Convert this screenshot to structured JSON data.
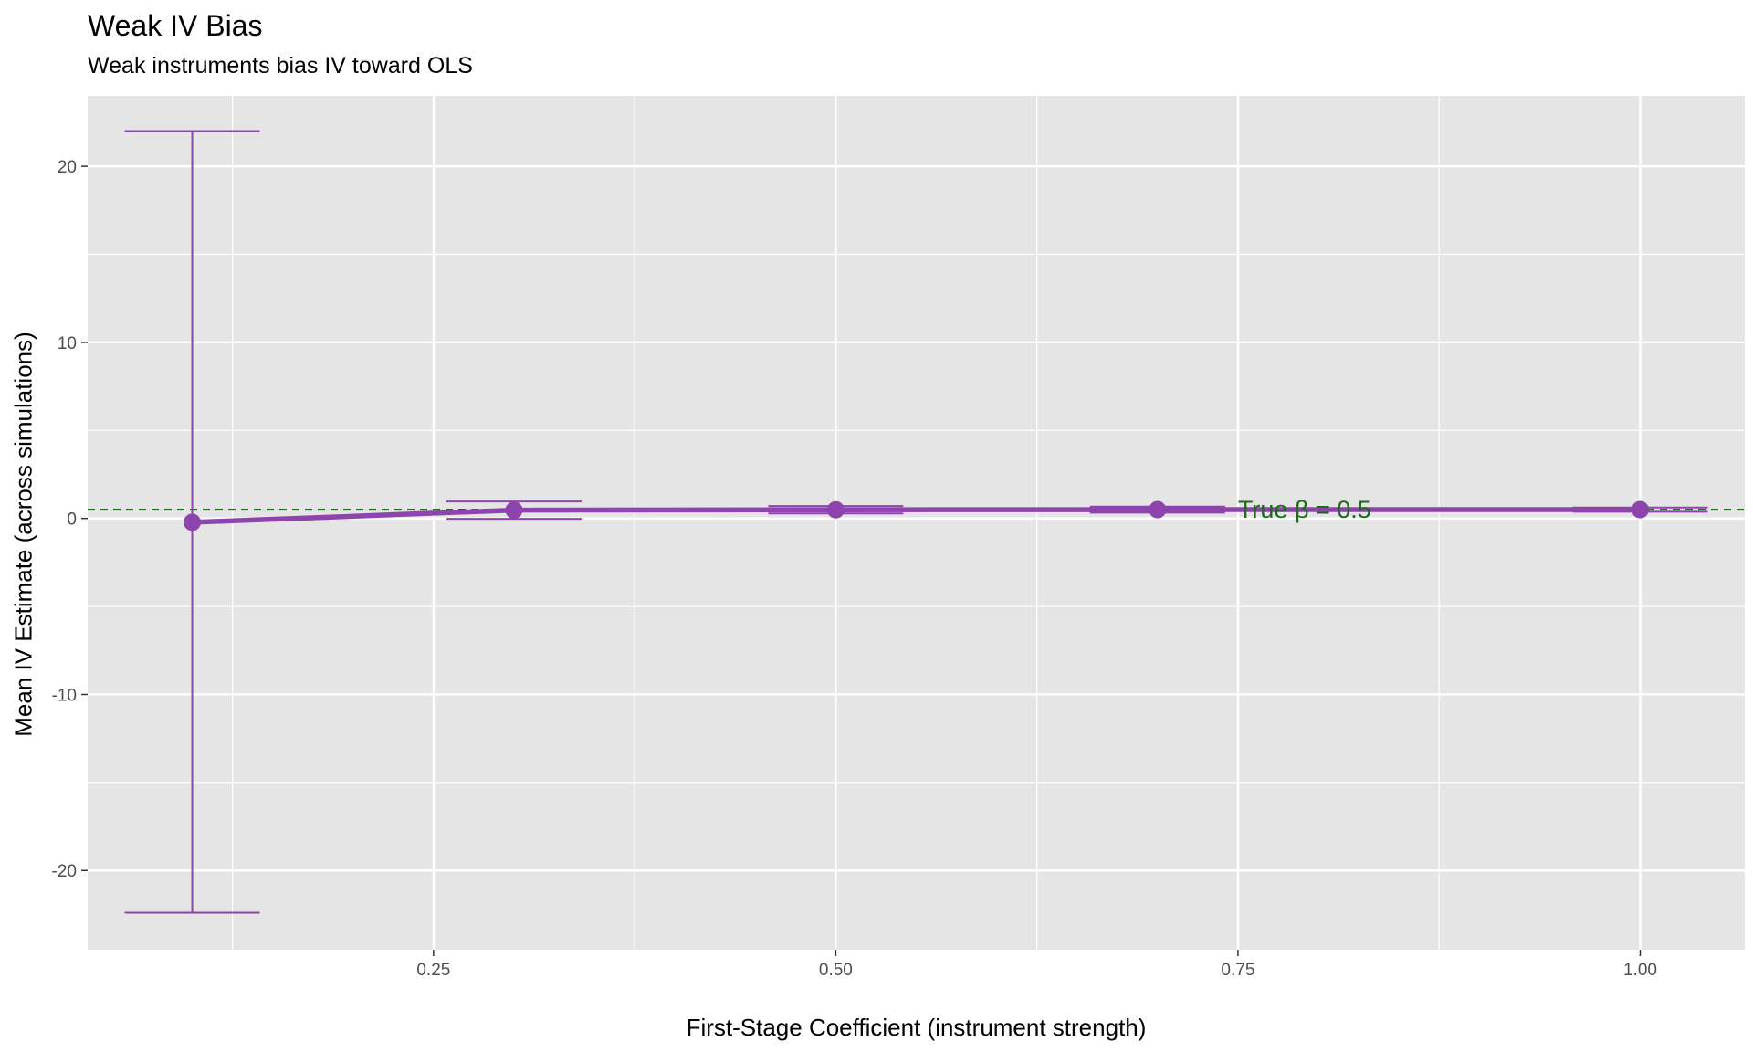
{
  "chart_data": {
    "type": "line",
    "title": "Weak IV Bias",
    "subtitle": "Weak instruments bias IV toward OLS",
    "xlabel": "First-Stage Coefficient (instrument strength)",
    "ylabel": "Mean IV Estimate (across simulations)",
    "xlim": [
      0.035,
      1.065
    ],
    "ylim": [
      -24.5,
      24
    ],
    "x_ticks": [
      0.25,
      0.5,
      0.75,
      1.0
    ],
    "x_tick_labels": [
      "0.25",
      "0.50",
      "0.75",
      "1.00"
    ],
    "y_ticks": [
      -20,
      -10,
      0,
      10,
      20
    ],
    "y_tick_labels": [
      "-20",
      "-10",
      "0",
      "10",
      "20"
    ],
    "grid": true,
    "series": [
      {
        "x": [
          0.1,
          0.3,
          0.5,
          0.7,
          1.0
        ],
        "y": [
          -0.22,
          0.47,
          0.49,
          0.5,
          0.5
        ],
        "ymin": [
          -22.4,
          -0.02,
          0.28,
          0.33,
          0.38
        ],
        "ymax": [
          22.0,
          0.96,
          0.7,
          0.67,
          0.62
        ],
        "color": "#8E44AD"
      }
    ],
    "reference_line": {
      "y": 0.5,
      "color": "#1A6B1A",
      "style": "dashed"
    },
    "annotation": {
      "text": "True β = 0.5",
      "x": 0.75,
      "y": 0.5,
      "color": "#1A6B1A"
    },
    "background": "#E5E5E5",
    "gridline_color": "#FFFFFF"
  }
}
